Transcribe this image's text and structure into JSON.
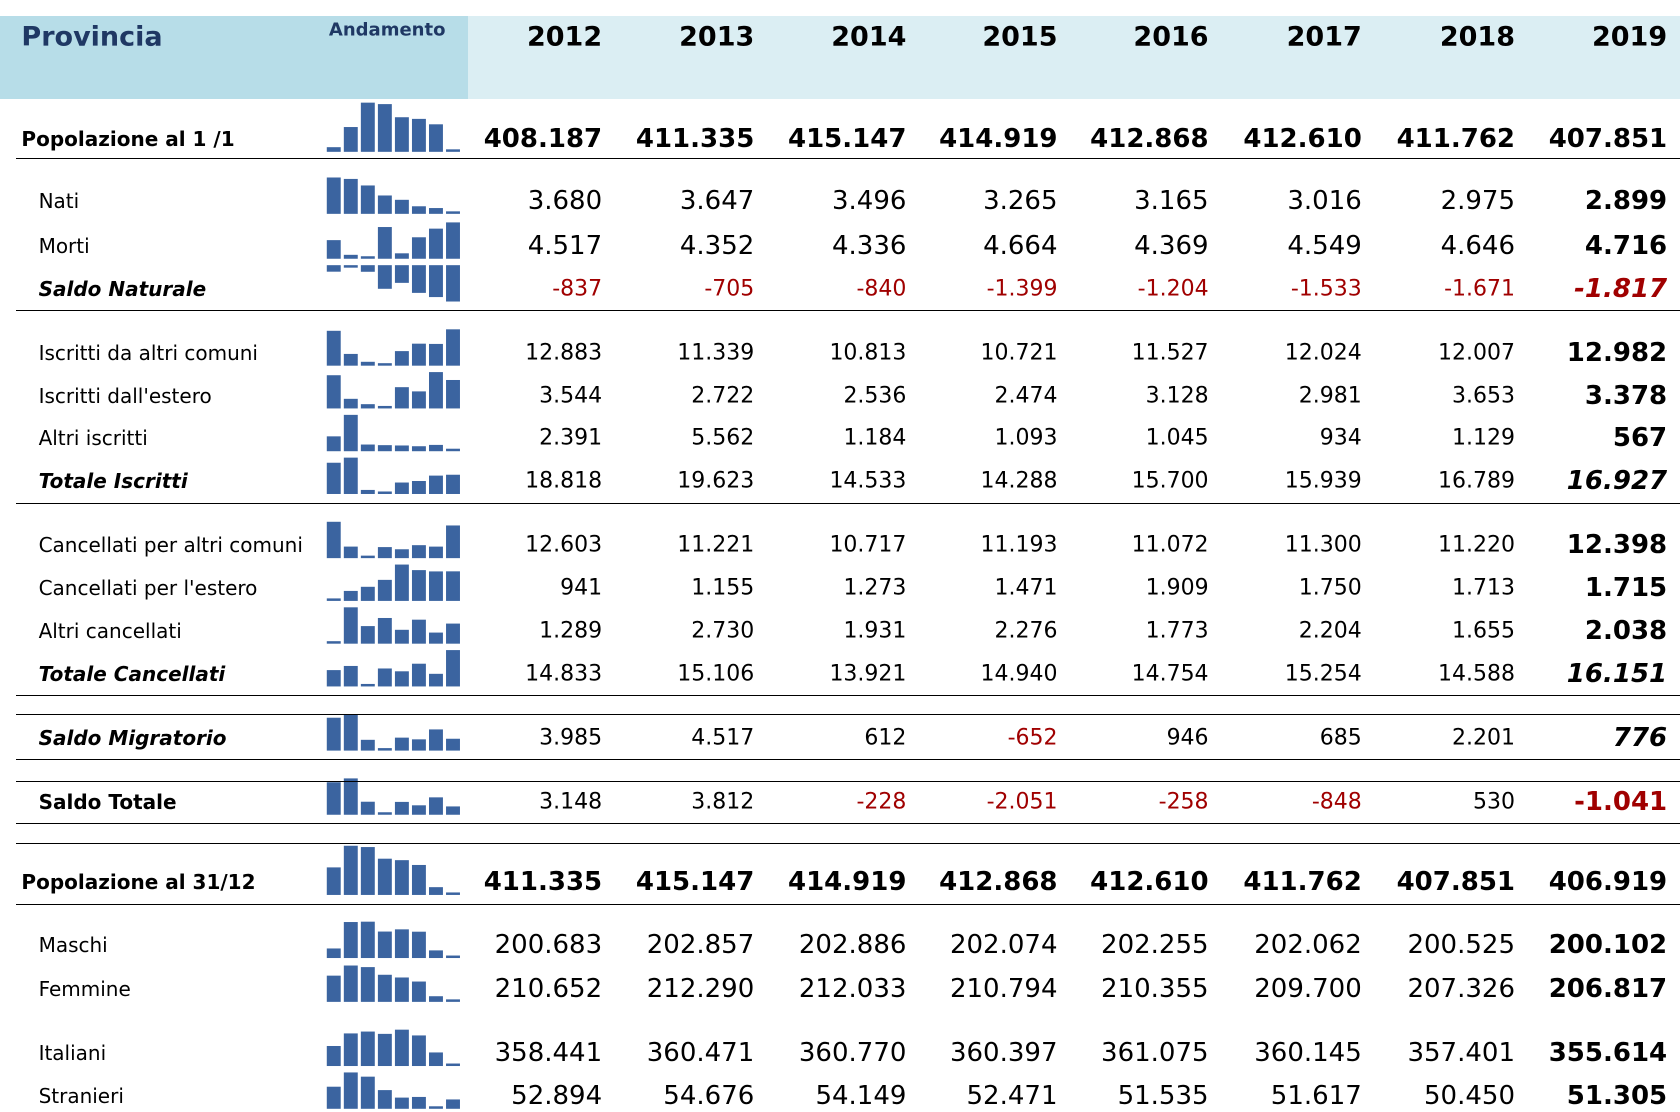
{
  "header": {
    "title": "Provincia",
    "trend": "Andamento",
    "years": [
      "2012",
      "2013",
      "2014",
      "2015",
      "2016",
      "2017",
      "2018",
      "2019"
    ]
  },
  "rows": [
    {
      "label": "Popolazione al 1 /1",
      "values": [
        "408.187",
        "411.335",
        "415.147",
        "414.919",
        "412.868",
        "412.610",
        "411.762",
        "407.851"
      ]
    },
    {
      "label": "Nati",
      "values": [
        "3.680",
        "3.647",
        "3.496",
        "3.265",
        "3.165",
        "3.016",
        "2.975",
        "2.899"
      ]
    },
    {
      "label": "Morti",
      "values": [
        "4.517",
        "4.352",
        "4.336",
        "4.664",
        "4.369",
        "4.549",
        "4.646",
        "4.716"
      ]
    },
    {
      "label": "Saldo Naturale",
      "values": [
        "-837",
        "-705",
        "-840",
        "-1.399",
        "-1.204",
        "-1.533",
        "-1.671",
        "-1.817"
      ]
    },
    {
      "label": "Iscritti da altri comuni",
      "values": [
        "12.883",
        "11.339",
        "10.813",
        "10.721",
        "11.527",
        "12.024",
        "12.007",
        "12.982"
      ]
    },
    {
      "label": "Iscritti dall'estero",
      "values": [
        "3.544",
        "2.722",
        "2.536",
        "2.474",
        "3.128",
        "2.981",
        "3.653",
        "3.378"
      ]
    },
    {
      "label": "Altri iscritti",
      "values": [
        "2.391",
        "5.562",
        "1.184",
        "1.093",
        "1.045",
        "934",
        "1.129",
        "567"
      ]
    },
    {
      "label": "Totale Iscritti",
      "values": [
        "18.818",
        "19.623",
        "14.533",
        "14.288",
        "15.700",
        "15.939",
        "16.789",
        "16.927"
      ]
    },
    {
      "label": "Cancellati per altri comuni",
      "values": [
        "12.603",
        "11.221",
        "10.717",
        "11.193",
        "11.072",
        "11.300",
        "11.220",
        "12.398"
      ]
    },
    {
      "label": "Cancellati per l'estero",
      "values": [
        "941",
        "1.155",
        "1.273",
        "1.471",
        "1.909",
        "1.750",
        "1.713",
        "1.715"
      ]
    },
    {
      "label": "Altri cancellati",
      "values": [
        "1.289",
        "2.730",
        "1.931",
        "2.276",
        "1.773",
        "2.204",
        "1.655",
        "2.038"
      ]
    },
    {
      "label": "Totale Cancellati",
      "values": [
        "14.833",
        "15.106",
        "13.921",
        "14.940",
        "14.754",
        "15.254",
        "14.588",
        "16.151"
      ]
    },
    {
      "label": "Saldo Migratorio",
      "values": [
        "3.985",
        "4.517",
        "612",
        "-652",
        "946",
        "685",
        "2.201",
        "776"
      ]
    },
    {
      "label": "Saldo Totale",
      "values": [
        "3.148",
        "3.812",
        "-228",
        "-2.051",
        "-258",
        "-848",
        "530",
        "-1.041"
      ]
    },
    {
      "label": "Popolazione al 31/12",
      "values": [
        "411.335",
        "415.147",
        "414.919",
        "412.868",
        "412.610",
        "411.762",
        "407.851",
        "406.919"
      ]
    },
    {
      "label": "Maschi",
      "values": [
        "200.683",
        "202.857",
        "202.886",
        "202.074",
        "202.255",
        "202.062",
        "200.525",
        "200.102"
      ]
    },
    {
      "label": "Femmine",
      "values": [
        "210.652",
        "212.290",
        "212.033",
        "210.794",
        "210.355",
        "209.700",
        "207.326",
        "206.817"
      ]
    },
    {
      "label": "Italiani",
      "values": [
        "358.441",
        "360.471",
        "360.770",
        "360.397",
        "361.075",
        "360.145",
        "357.401",
        "355.614"
      ]
    },
    {
      "label": "Stranieri",
      "values": [
        "52.894",
        "54.676",
        "54.149",
        "52.471",
        "51.535",
        "51.617",
        "50.450",
        "51.305"
      ]
    }
  ]
}
